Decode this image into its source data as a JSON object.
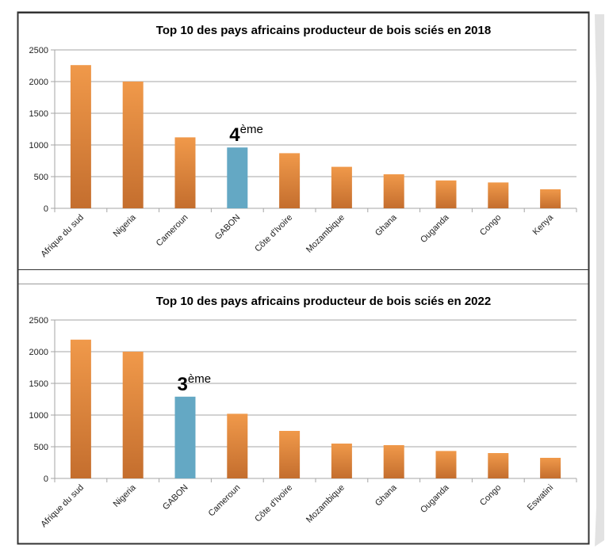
{
  "chart_data": [
    {
      "type": "bar",
      "title": "Top 10 des pays africains producteur de bois sciés en 2018",
      "xlabel": "",
      "ylabel": "",
      "ylim": [
        0,
        2500
      ],
      "yticks": [
        "0",
        "500",
        "1000",
        "1500",
        "2000",
        "2500"
      ],
      "ytick_values": [
        0,
        500,
        1000,
        1500,
        2000,
        2500
      ],
      "grid": true,
      "legend": "none",
      "categories": [
        "Afrique du sud",
        "Nigeria",
        "Cameroun",
        "GABON",
        "Côte d'Ivoire",
        "Mozambique",
        "Ghana",
        "Ouganda",
        "Congo",
        "Kenya"
      ],
      "values": [
        2260,
        2000,
        1120,
        960,
        870,
        655,
        537,
        440,
        408,
        300
      ],
      "highlight_index": 3,
      "annotation": {
        "rank": "4",
        "suffix": "ème"
      }
    },
    {
      "type": "bar",
      "title": "Top 10 des pays africains producteur de bois sciés en 2022",
      "xlabel": "",
      "ylabel": "",
      "ylim": [
        0,
        2500
      ],
      "yticks": [
        "0",
        "500",
        "1000",
        "1500",
        "2000",
        "2500"
      ],
      "ytick_values": [
        0,
        500,
        1000,
        1500,
        2000,
        2500
      ],
      "grid": true,
      "legend": "none",
      "categories": [
        "Afrique du sud",
        "Nigeria",
        "GABON",
        "Cameroun",
        "Côte d'Ivoire",
        "Mozambique",
        "Ghana",
        "Ouganda",
        "Congo",
        "Eswatini"
      ],
      "values": [
        2190,
        2000,
        1290,
        1020,
        750,
        550,
        525,
        433,
        400,
        325
      ],
      "highlight_index": 2,
      "annotation": {
        "rank": "3",
        "suffix": "ème"
      }
    }
  ],
  "colors": {
    "bar_top": "#F0994A",
    "bar_bottom": "#C46E2E",
    "highlight": "#64A8C4",
    "grid": "#A6A6A6",
    "frame": "#333333",
    "text": "#000000",
    "shadow": "#E2E2E2"
  }
}
